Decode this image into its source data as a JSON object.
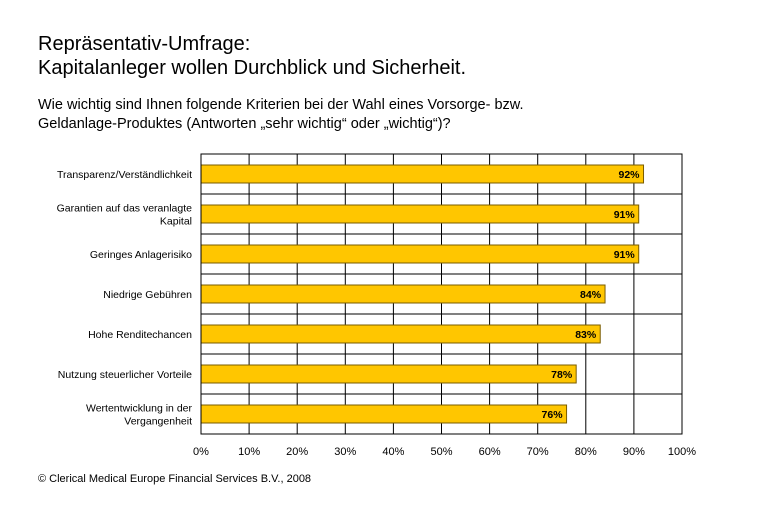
{
  "title": {
    "line1": "Repräsentativ-Umfrage:",
    "line2": "Kapitalanleger wollen Durchblick und Sicherheit."
  },
  "question": {
    "line1": "Wie wichtig sind Ihnen folgende Kriterien bei der Wahl eines Vorsorge- bzw.",
    "line2": "Geldanlage-Produktes (Antworten „sehr wichtig“ oder „wichtig“)?"
  },
  "footer": "© Clerical Medical Europe Financial Services B.V., 2008",
  "colors": {
    "bar_fill": "#FFC600",
    "bar_stroke": "#7a5c00",
    "grid": "#000000",
    "plot_bg": "#ffffff"
  },
  "chart_data": {
    "type": "bar",
    "orientation": "horizontal",
    "categories": [
      [
        "Transparenz/Verständlichkeit"
      ],
      [
        "Garantien auf das veranlagte",
        "Kapital"
      ],
      [
        "Geringes Anlagerisiko"
      ],
      [
        "Niedrige Gebühren"
      ],
      [
        "Hohe Renditechancen"
      ],
      [
        "Nutzung steuerlicher Vorteile"
      ],
      [
        "Wertentwicklung in der",
        "Vergangenheit"
      ]
    ],
    "values": [
      92,
      91,
      91,
      84,
      83,
      78,
      76
    ],
    "value_labels": [
      "92%",
      "91%",
      "91%",
      "84%",
      "83%",
      "78%",
      "76%"
    ],
    "xlim": [
      0,
      100
    ],
    "x_ticks": [
      "0%",
      "10%",
      "20%",
      "30%",
      "40%",
      "50%",
      "60%",
      "70%",
      "80%",
      "90%",
      "100%"
    ],
    "grid": true,
    "xlabel": "",
    "ylabel": ""
  }
}
